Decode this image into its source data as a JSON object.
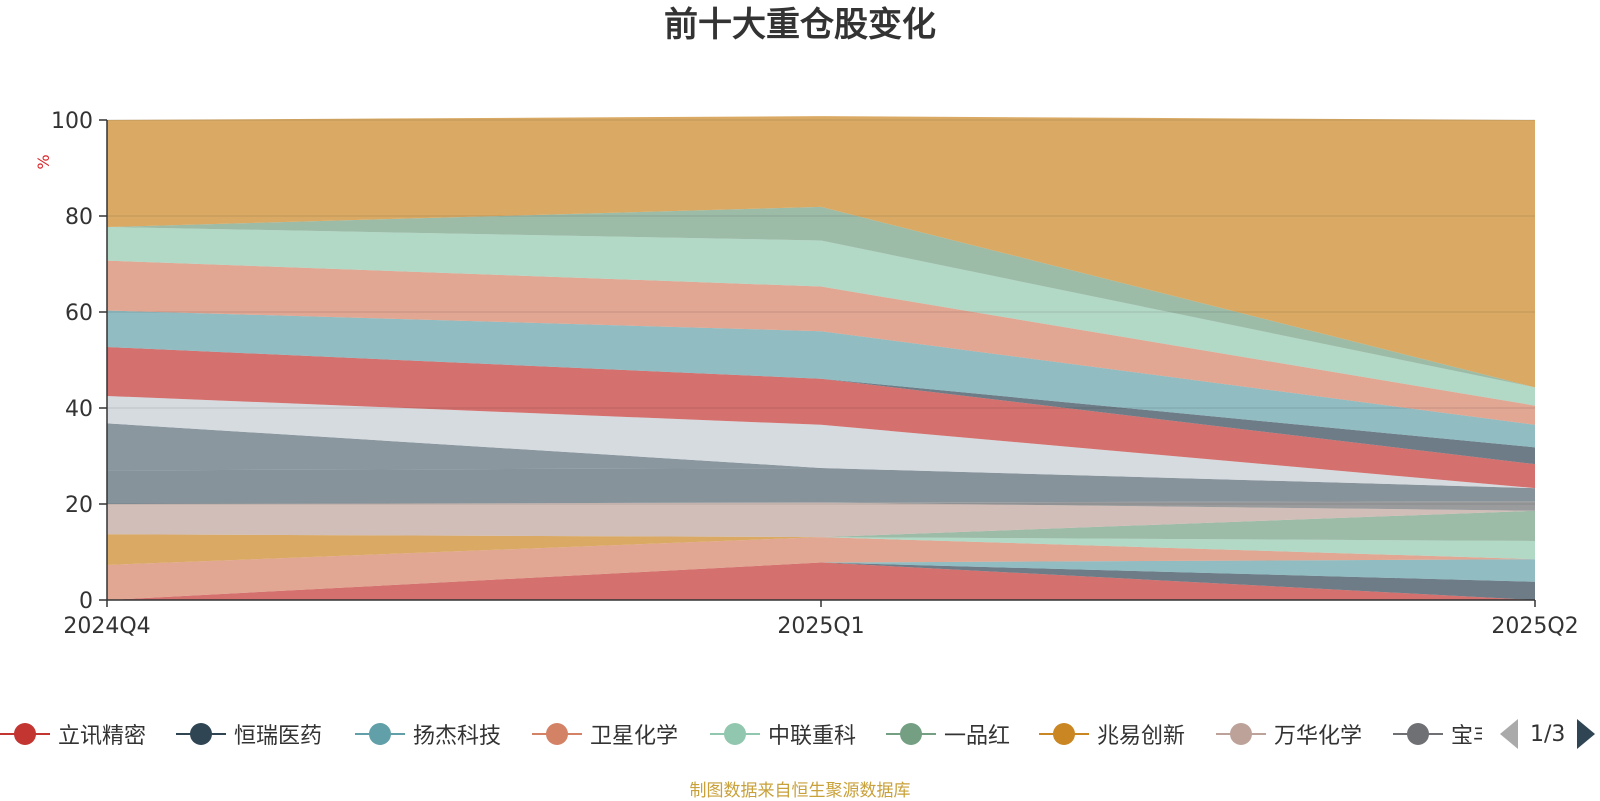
{
  "title": "前十大重仓股变化",
  "source_note": "制图数据来自恒生聚源数据库",
  "legend": {
    "items": [
      {
        "label": "立讯精密",
        "color": "#c23531"
      },
      {
        "label": "恒瑞医药",
        "color": "#2f4554"
      },
      {
        "label": "扬杰科技",
        "color": "#61a0a8"
      },
      {
        "label": "卫星化学",
        "color": "#d48265"
      },
      {
        "label": "中联重科",
        "color": "#91c7ae"
      },
      {
        "label": "一品红",
        "color": "#749f83"
      },
      {
        "label": "兆易创新",
        "color": "#ca8622"
      },
      {
        "label": "万华化学",
        "color": "#bda29a"
      },
      {
        "label": "宝丰能源",
        "color": "#6e7074"
      }
    ],
    "page": "1/3"
  },
  "chart_data": {
    "type": "area",
    "stacked": true,
    "ylabel": "%",
    "ylim": [
      0,
      100
    ],
    "yticks": [
      0,
      20,
      40,
      60,
      80,
      100
    ],
    "categories": [
      "2024Q4",
      "2025Q1",
      "2025Q2"
    ],
    "grid": true,
    "series": [
      {
        "name": "立讯精密",
        "color": "#c23531",
        "values": [
          0,
          7.8,
          0
        ]
      },
      {
        "name": "恒瑞医药",
        "color": "#2f4554",
        "values": [
          0,
          0,
          3.8
        ]
      },
      {
        "name": "扬杰科技",
        "color": "#61a0a8",
        "values": [
          0,
          0,
          4.7
        ]
      },
      {
        "name": "卫星化学",
        "color": "#d48265",
        "values": [
          7.3,
          5.3,
          0
        ]
      },
      {
        "name": "中联重科",
        "color": "#91c7ae",
        "values": [
          0,
          0,
          3.8
        ]
      },
      {
        "name": "一品红",
        "color": "#749f83",
        "values": [
          0,
          0,
          6.3
        ]
      },
      {
        "name": "兆易创新",
        "color": "#ca8622",
        "values": [
          6.4,
          0,
          0
        ]
      },
      {
        "name": "万华化学",
        "color": "#bda29a",
        "values": [
          6.3,
          7.2,
          0
        ]
      },
      {
        "name": "宝丰能源",
        "color": "#6e7074",
        "values": [
          0,
          0,
          2.0
        ]
      },
      {
        "name": "",
        "color": "#546570",
        "values": [
          7.0,
          7.2,
          2.7
        ]
      },
      {
        "name": "",
        "color": "#5a6b76",
        "values": [
          9.8,
          0,
          0
        ]
      },
      {
        "name": "",
        "color": "#c4ccd3",
        "values": [
          5.7,
          9.0,
          0
        ]
      },
      {
        "name": "",
        "color": "#c23531",
        "values": [
          10.2,
          9.6,
          5.0
        ]
      },
      {
        "name": "",
        "color": "#2f4554",
        "values": [
          0,
          0,
          3.5
        ]
      },
      {
        "name": "",
        "color": "#61a0a8",
        "values": [
          7.6,
          9.9,
          4.7
        ]
      },
      {
        "name": "",
        "color": "#d48265",
        "values": [
          10.4,
          9.3,
          4.0
        ]
      },
      {
        "name": "",
        "color": "#91c7ae",
        "values": [
          7.0,
          9.6,
          3.8
        ]
      },
      {
        "name": "",
        "color": "#749f83",
        "values": [
          0,
          7.0,
          0
        ]
      },
      {
        "name": "",
        "color": "#ca8622",
        "values": [
          22.3,
          18.9,
          55.7
        ]
      }
    ]
  }
}
